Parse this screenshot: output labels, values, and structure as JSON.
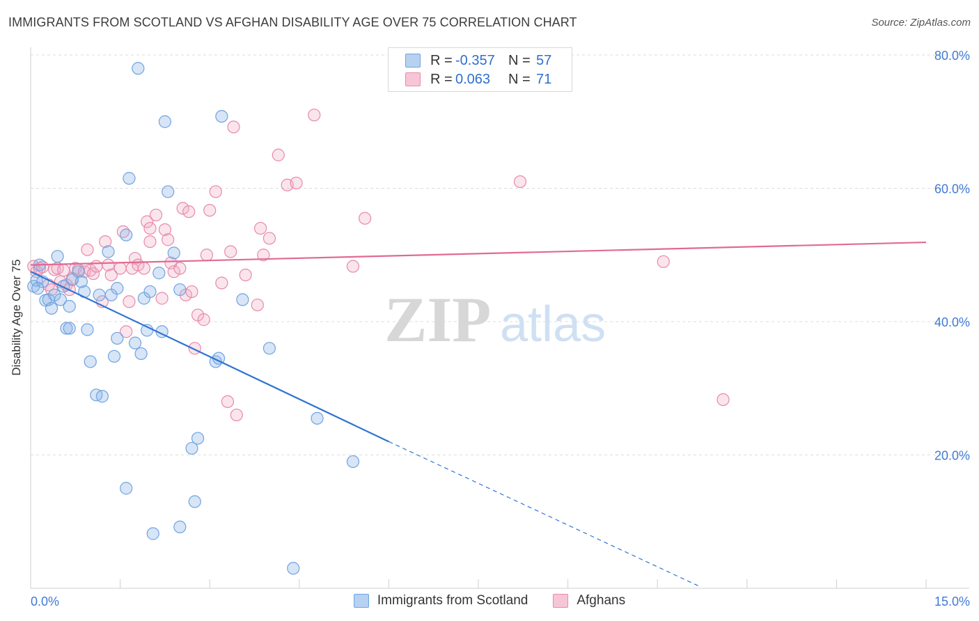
{
  "title": "IMMIGRANTS FROM SCOTLAND VS AFGHAN DISABILITY AGE OVER 75 CORRELATION CHART",
  "source": "Source: ZipAtlas.com",
  "watermark": {
    "zip": "ZIP",
    "atlas": "atlas"
  },
  "legend": {
    "r_label": "R =",
    "n_label": "N =",
    "rows": [
      {
        "r": "-0.357",
        "n": "57",
        "color": "#6fa3e0"
      },
      {
        "r": "0.063",
        "n": "71",
        "color": "#e889a8"
      }
    ]
  },
  "bottom_legend": [
    {
      "label": "Immigrants from Scotland",
      "color": "#6fa3e0"
    },
    {
      "label": "Afghans",
      "color": "#e889a8"
    }
  ],
  "chart_data": {
    "type": "scatter",
    "xlabel": "",
    "ylabel": "Disability Age Over 75",
    "xlim": [
      0,
      15
    ],
    "ylim": [
      0,
      80
    ],
    "x_tick_labels": [
      "0.0%",
      "15.0%"
    ],
    "y_tick_labels": [
      "20.0%",
      "40.0%",
      "60.0%",
      "80.0%"
    ],
    "y_ticks": [
      20,
      40,
      60,
      80
    ],
    "grid": true,
    "series": [
      {
        "name": "Immigrants from Scotland",
        "color": "#6fa3e0",
        "trend": {
          "x0": 0.0,
          "y0": 47.5,
          "x1": 6.0,
          "y1": 22.0,
          "dash_to_x": 11.2,
          "dash_to_y": 0.3
        },
        "points": [
          [
            0.05,
            45.3
          ],
          [
            0.1,
            46.2
          ],
          [
            0.15,
            48.5
          ],
          [
            0.2,
            46.0
          ],
          [
            0.25,
            43.2
          ],
          [
            0.3,
            43.3
          ],
          [
            0.35,
            42.0
          ],
          [
            0.4,
            44.0
          ],
          [
            0.45,
            49.8
          ],
          [
            0.5,
            43.3
          ],
          [
            0.55,
            45.3
          ],
          [
            0.6,
            39.0
          ],
          [
            0.65,
            42.3
          ],
          [
            0.7,
            46.3
          ],
          [
            0.8,
            47.5
          ],
          [
            0.9,
            44.5
          ],
          [
            0.95,
            38.8
          ],
          [
            1.0,
            34.0
          ],
          [
            1.1,
            29.0
          ],
          [
            1.15,
            44.0
          ],
          [
            1.2,
            28.8
          ],
          [
            1.3,
            50.5
          ],
          [
            1.35,
            44.0
          ],
          [
            1.4,
            34.8
          ],
          [
            1.45,
            45.0
          ],
          [
            1.45,
            37.5
          ],
          [
            1.6,
            53.0
          ],
          [
            1.6,
            15.0
          ],
          [
            1.65,
            61.5
          ],
          [
            1.75,
            36.8
          ],
          [
            1.8,
            78.0
          ],
          [
            1.85,
            35.2
          ],
          [
            1.9,
            43.5
          ],
          [
            1.95,
            38.7
          ],
          [
            2.0,
            44.5
          ],
          [
            2.05,
            8.2
          ],
          [
            2.15,
            47.3
          ],
          [
            2.2,
            38.5
          ],
          [
            2.25,
            70.0
          ],
          [
            2.3,
            59.5
          ],
          [
            2.4,
            50.3
          ],
          [
            2.5,
            9.2
          ],
          [
            2.5,
            44.8
          ],
          [
            2.7,
            21.0
          ],
          [
            2.75,
            13.0
          ],
          [
            2.8,
            22.5
          ],
          [
            3.1,
            34.0
          ],
          [
            3.15,
            34.5
          ],
          [
            3.2,
            70.8
          ],
          [
            3.55,
            43.3
          ],
          [
            4.0,
            36.0
          ],
          [
            4.4,
            3.0
          ],
          [
            4.8,
            25.5
          ],
          [
            5.4,
            19.0
          ],
          [
            0.12,
            45.0
          ],
          [
            0.85,
            46.0
          ],
          [
            0.65,
            39.0
          ]
        ]
      },
      {
        "name": "Afghans",
        "color": "#e889a8",
        "trend": {
          "x0": 0.0,
          "y0": 48.5,
          "x1": 15.0,
          "y1": 51.9
        },
        "points": [
          [
            0.05,
            48.3
          ],
          [
            0.1,
            47.5
          ],
          [
            0.15,
            48.0
          ],
          [
            0.2,
            48.2
          ],
          [
            0.3,
            45.5
          ],
          [
            0.35,
            44.8
          ],
          [
            0.4,
            47.8
          ],
          [
            0.45,
            48.0
          ],
          [
            0.5,
            46.0
          ],
          [
            0.55,
            47.7
          ],
          [
            0.6,
            45.5
          ],
          [
            0.65,
            44.8
          ],
          [
            0.7,
            46.5
          ],
          [
            0.75,
            48.0
          ],
          [
            0.8,
            47.8
          ],
          [
            0.9,
            47.5
          ],
          [
            0.95,
            50.8
          ],
          [
            1.0,
            47.7
          ],
          [
            1.05,
            47.2
          ],
          [
            1.1,
            48.3
          ],
          [
            1.2,
            43.0
          ],
          [
            1.25,
            52.0
          ],
          [
            1.3,
            48.5
          ],
          [
            1.35,
            47.0
          ],
          [
            1.5,
            48.0
          ],
          [
            1.55,
            53.5
          ],
          [
            1.6,
            38.5
          ],
          [
            1.65,
            43.0
          ],
          [
            1.7,
            48.0
          ],
          [
            1.75,
            49.5
          ],
          [
            1.8,
            48.5
          ],
          [
            1.9,
            48.0
          ],
          [
            1.95,
            55.0
          ],
          [
            2.0,
            54.0
          ],
          [
            2.0,
            52.0
          ],
          [
            2.1,
            56.0
          ],
          [
            2.2,
            43.5
          ],
          [
            2.25,
            53.8
          ],
          [
            2.3,
            52.3
          ],
          [
            2.35,
            48.8
          ],
          [
            2.4,
            47.5
          ],
          [
            2.5,
            48.0
          ],
          [
            2.55,
            57.0
          ],
          [
            2.6,
            44.0
          ],
          [
            2.65,
            56.5
          ],
          [
            2.7,
            44.5
          ],
          [
            2.75,
            36.0
          ],
          [
            2.8,
            41.0
          ],
          [
            2.9,
            40.3
          ],
          [
            2.95,
            50.0
          ],
          [
            3.0,
            56.7
          ],
          [
            3.1,
            59.5
          ],
          [
            3.2,
            45.8
          ],
          [
            3.3,
            28.0
          ],
          [
            3.35,
            50.5
          ],
          [
            3.4,
            69.2
          ],
          [
            3.45,
            26.0
          ],
          [
            3.6,
            47.0
          ],
          [
            3.8,
            42.5
          ],
          [
            3.85,
            54.0
          ],
          [
            3.9,
            50.0
          ],
          [
            4.0,
            52.5
          ],
          [
            4.15,
            65.0
          ],
          [
            4.3,
            60.5
          ],
          [
            4.45,
            60.8
          ],
          [
            4.75,
            71.0
          ],
          [
            5.4,
            48.3
          ],
          [
            5.6,
            55.5
          ],
          [
            8.2,
            61.0
          ],
          [
            10.6,
            49.0
          ],
          [
            11.6,
            28.3
          ]
        ]
      }
    ]
  }
}
